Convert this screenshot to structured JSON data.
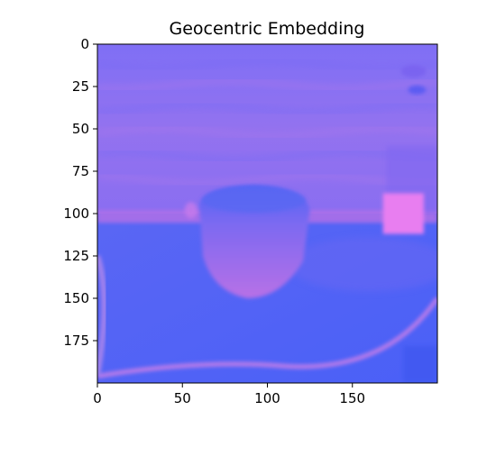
{
  "chart_data": {
    "type": "heatmap",
    "title": "Geocentric Embedding",
    "xlabel": "",
    "ylabel": "",
    "xlim": [
      0,
      200
    ],
    "ylim": [
      200,
      0
    ],
    "xticks": [
      0,
      50,
      100,
      150
    ],
    "yticks": [
      0,
      25,
      50,
      75,
      100,
      125,
      150,
      175
    ],
    "image_size": [
      200,
      200
    ],
    "grid": false,
    "legend": "none",
    "colors": {
      "background_wall": "#8d6ff0",
      "wall_stripe": "#9a74ee",
      "floor_blue": "#4f63f6",
      "table_edge": "#b070e8",
      "object_body": "#9268ef",
      "object_top": "#5a68f2",
      "object_bottom": "#b36fe6",
      "pink_patch": "#e87ef0",
      "left_edge": "#b98bea",
      "dark_corner": "#3f58f0"
    },
    "regions": [
      {
        "label": "upper wall",
        "x_range": [
          0,
          200
        ],
        "y_range": [
          0,
          100
        ],
        "color": "background_wall"
      },
      {
        "label": "table surface",
        "x_range": [
          0,
          200
        ],
        "y_range": [
          100,
          200
        ],
        "color": "floor_blue"
      },
      {
        "label": "cylindrical object",
        "x_range": [
          60,
          125
        ],
        "y_range": [
          83,
          150
        ],
        "color": "object_body"
      },
      {
        "label": "pink patch",
        "x_range": [
          168,
          192
        ],
        "y_range": [
          88,
          112
        ],
        "color": "pink_patch"
      }
    ]
  }
}
